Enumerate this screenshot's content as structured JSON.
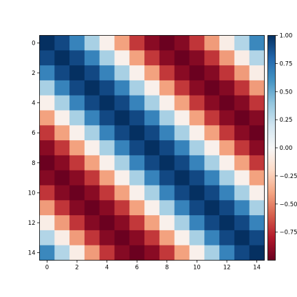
{
  "chart_data": {
    "type": "heatmap",
    "title": "",
    "xlabel": "",
    "ylabel": "",
    "rows": 15,
    "cols": 15,
    "x_ticks": [
      "0",
      "2",
      "4",
      "6",
      "8",
      "10",
      "12",
      "14"
    ],
    "y_ticks": [
      "0",
      "2",
      "4",
      "6",
      "8",
      "10",
      "12",
      "14"
    ],
    "colorbar": {
      "min": -1.0,
      "max": 1.0,
      "ticks": [
        "1.00",
        "0.75",
        "0.50",
        "0.25",
        "0.00",
        "−0.25",
        "−0.50",
        "−0.75"
      ],
      "tick_values": [
        1.0,
        0.75,
        0.5,
        0.25,
        0.0,
        -0.25,
        -0.5,
        -0.75
      ]
    },
    "colormap": [
      "#67001f",
      "#b2182b",
      "#d6604d",
      "#f4a582",
      "#fddbc7",
      "#f7f7f7",
      "#d1e5f0",
      "#92c5de",
      "#4393c3",
      "#2166ac",
      "#053061"
    ],
    "values": [
      [
        1.0,
        0.91,
        0.67,
        0.33,
        -0.05,
        -0.41,
        -0.71,
        -0.91,
        -0.99,
        -0.92,
        -0.72,
        -0.43,
        -0.07,
        0.3,
        0.65
      ],
      [
        0.91,
        1.0,
        0.91,
        0.67,
        0.33,
        -0.05,
        -0.41,
        -0.71,
        -0.91,
        -0.99,
        -0.92,
        -0.72,
        -0.43,
        -0.07,
        0.3
      ],
      [
        0.67,
        0.91,
        1.0,
        0.91,
        0.67,
        0.33,
        -0.05,
        -0.41,
        -0.71,
        -0.91,
        -0.99,
        -0.92,
        -0.72,
        -0.43,
        -0.07
      ],
      [
        0.33,
        0.67,
        0.91,
        1.0,
        0.91,
        0.67,
        0.33,
        -0.05,
        -0.41,
        -0.71,
        -0.91,
        -0.99,
        -0.92,
        -0.72,
        -0.43
      ],
      [
        -0.05,
        0.33,
        0.67,
        0.91,
        1.0,
        0.91,
        0.67,
        0.33,
        -0.05,
        -0.41,
        -0.71,
        -0.91,
        -0.99,
        -0.92,
        -0.72
      ],
      [
        -0.41,
        -0.05,
        0.33,
        0.67,
        0.91,
        1.0,
        0.91,
        0.67,
        0.33,
        -0.05,
        -0.41,
        -0.71,
        -0.91,
        -0.99,
        -0.92
      ],
      [
        -0.71,
        -0.41,
        -0.05,
        0.33,
        0.67,
        0.91,
        1.0,
        0.91,
        0.67,
        0.33,
        -0.05,
        -0.41,
        -0.71,
        -0.91,
        -0.99
      ],
      [
        -0.91,
        -0.71,
        -0.41,
        -0.05,
        0.33,
        0.67,
        0.91,
        1.0,
        0.91,
        0.67,
        0.33,
        -0.05,
        -0.41,
        -0.71,
        -0.91
      ],
      [
        -0.99,
        -0.91,
        -0.71,
        -0.41,
        -0.05,
        0.33,
        0.67,
        0.91,
        1.0,
        0.91,
        0.67,
        0.33,
        -0.05,
        -0.41,
        -0.71
      ],
      [
        -0.92,
        -0.99,
        -0.91,
        -0.71,
        -0.41,
        -0.05,
        0.33,
        0.67,
        0.91,
        1.0,
        0.91,
        0.67,
        0.33,
        -0.05,
        -0.41
      ],
      [
        -0.72,
        -0.92,
        -0.99,
        -0.91,
        -0.71,
        -0.41,
        -0.05,
        0.33,
        0.67,
        0.91,
        1.0,
        0.91,
        0.67,
        0.33,
        -0.05
      ],
      [
        -0.43,
        -0.72,
        -0.92,
        -0.99,
        -0.91,
        -0.71,
        -0.41,
        -0.05,
        0.33,
        0.67,
        0.91,
        1.0,
        0.91,
        0.67,
        0.33
      ],
      [
        -0.07,
        -0.43,
        -0.72,
        -0.92,
        -0.99,
        -0.91,
        -0.71,
        -0.41,
        -0.05,
        0.33,
        0.67,
        0.91,
        1.0,
        0.91,
        0.67
      ],
      [
        0.3,
        -0.07,
        -0.43,
        -0.72,
        -0.92,
        -0.99,
        -0.91,
        -0.71,
        -0.41,
        -0.05,
        0.33,
        0.67,
        0.91,
        1.0,
        0.91
      ],
      [
        0.65,
        0.3,
        -0.07,
        -0.43,
        -0.72,
        -0.92,
        -0.99,
        -0.91,
        -0.71,
        -0.41,
        -0.05,
        0.33,
        0.67,
        0.91,
        1.0
      ]
    ]
  }
}
